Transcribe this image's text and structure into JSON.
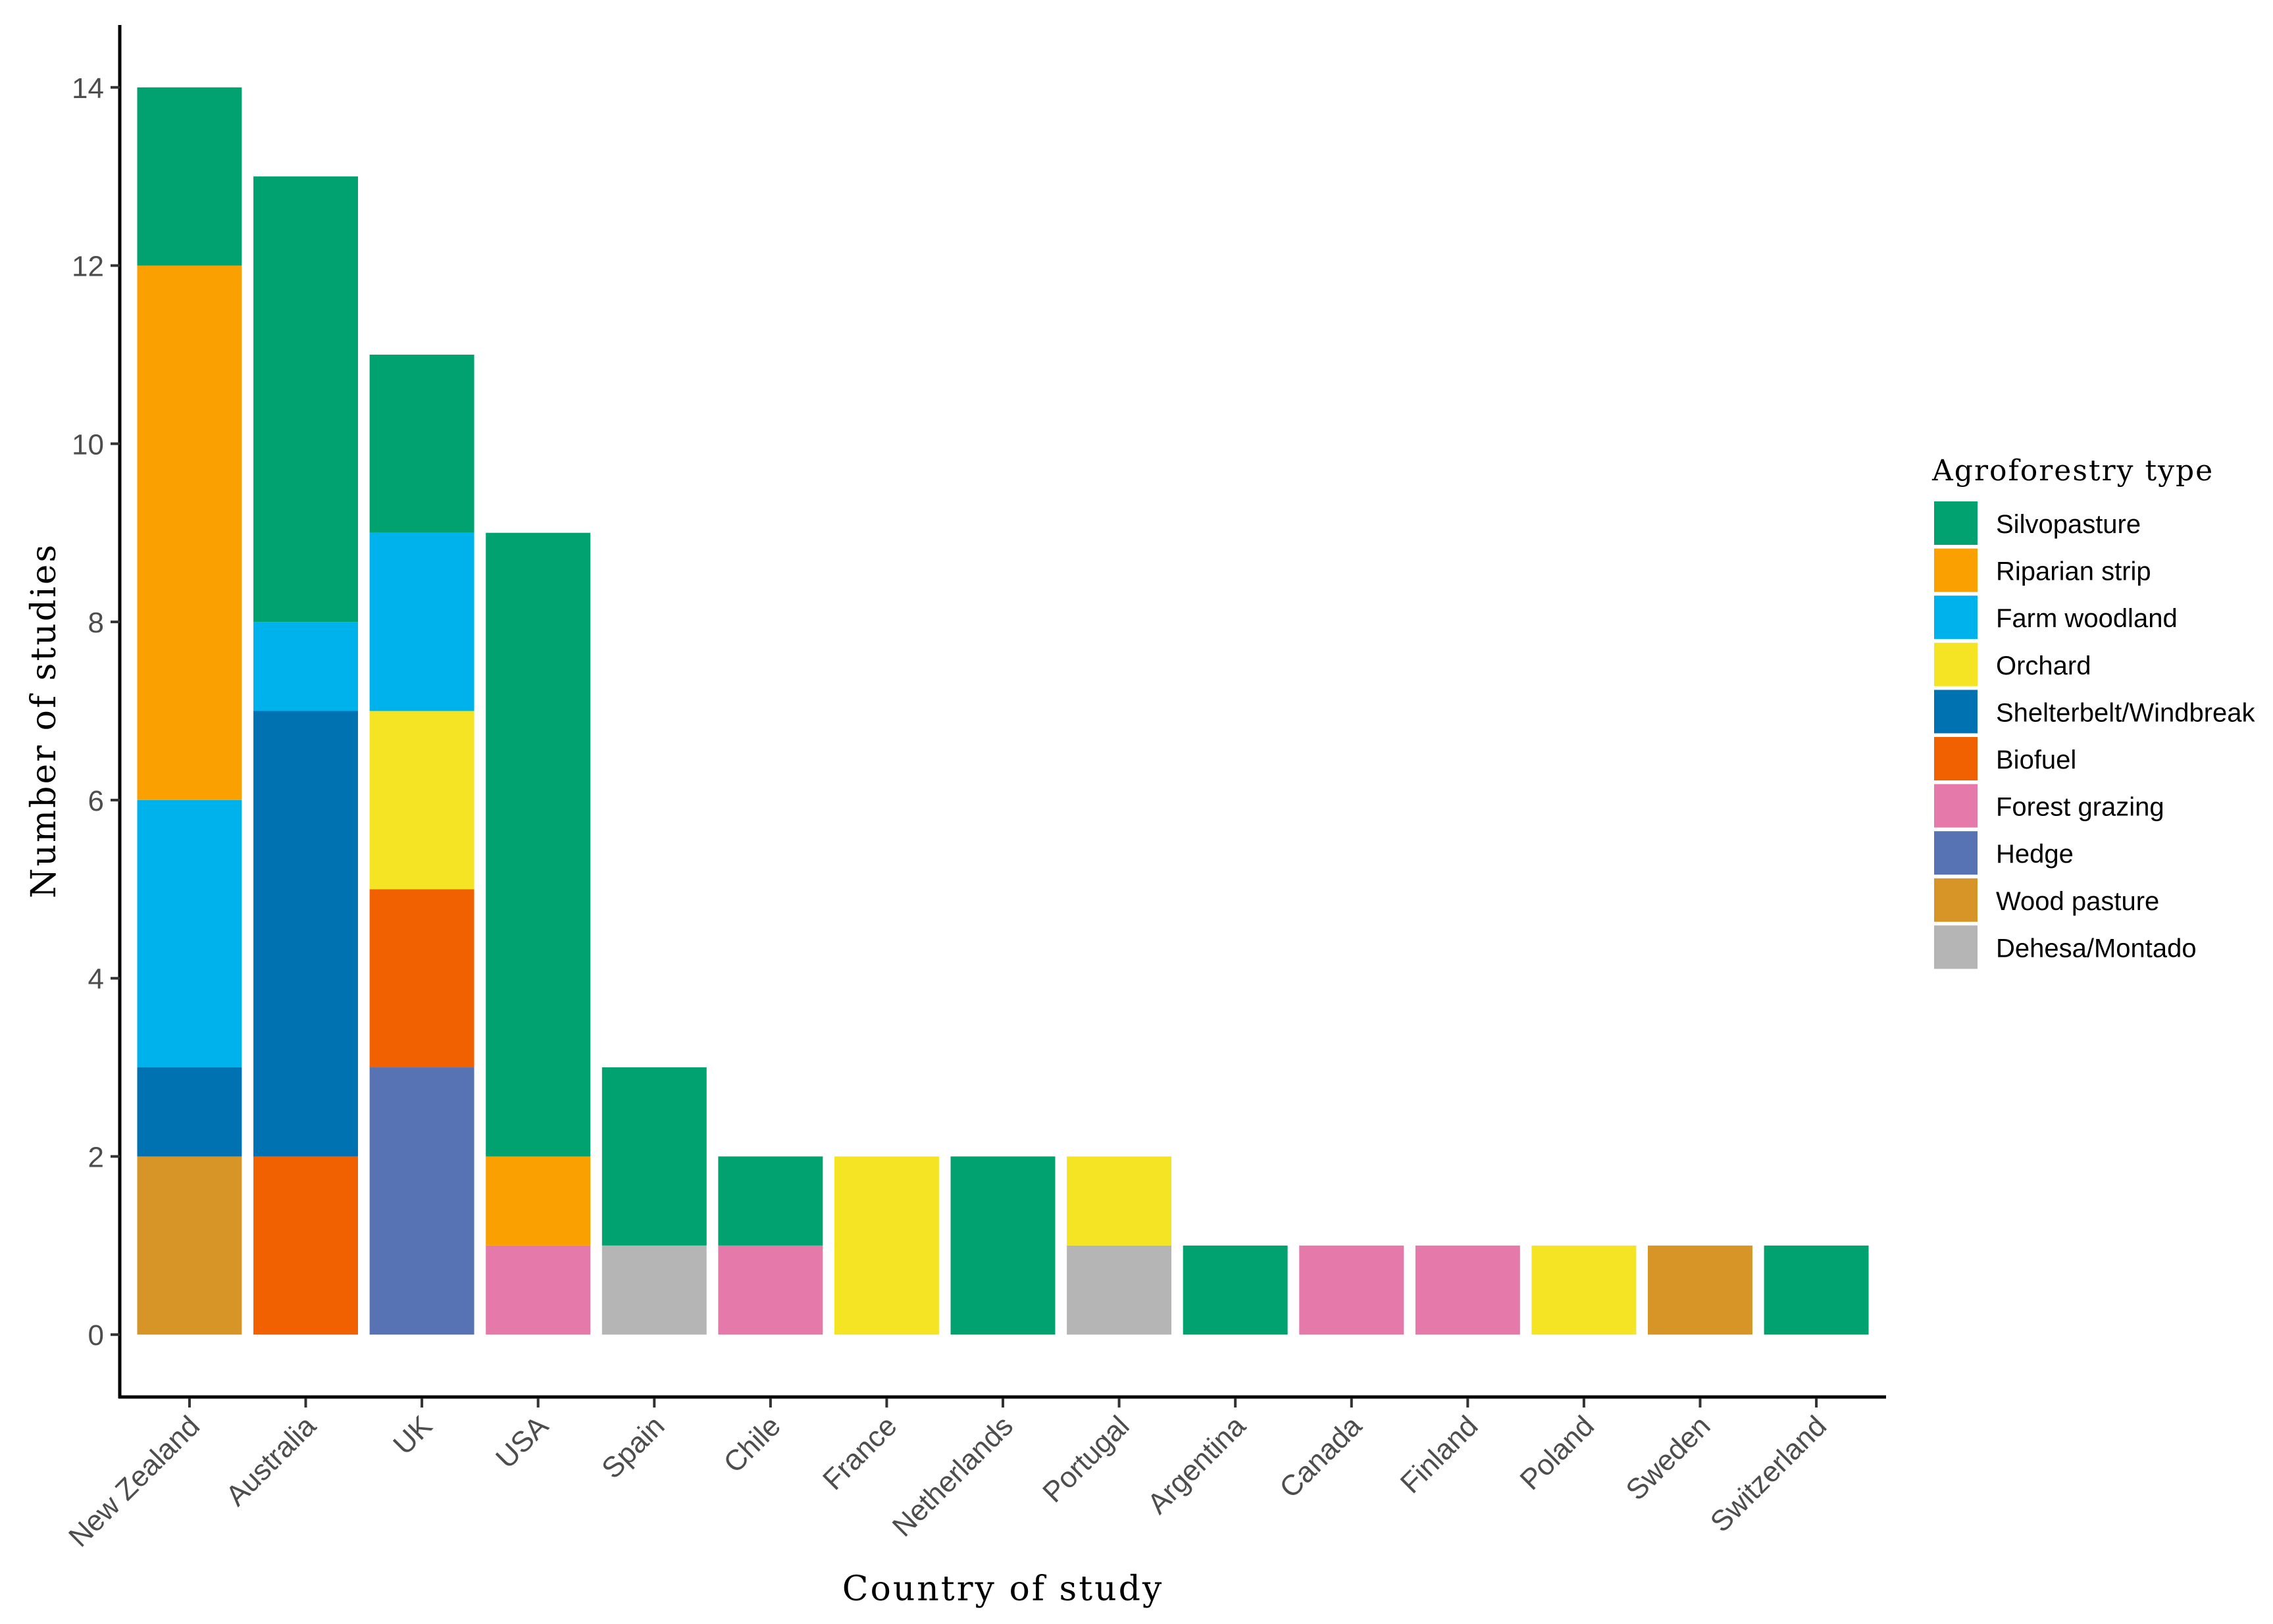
{
  "chart_data": {
    "type": "bar",
    "stacked": true,
    "xlabel": "Country of study",
    "ylabel": "Number of studies",
    "ylim": [
      -0.7,
      14.7
    ],
    "yticks": [
      0,
      2,
      4,
      6,
      8,
      10,
      12,
      14
    ],
    "grid": false,
    "legend_position": "right",
    "legend_title": "Agroforestry type",
    "categories": [
      "New Zealand",
      "Australia",
      "UK",
      "USA",
      "Spain",
      "Chile",
      "France",
      "Netherlands",
      "Portugal",
      "Argentina",
      "Canada",
      "Finland",
      "Poland",
      "Sweden",
      "Switzerland"
    ],
    "series": [
      {
        "name": "Wood pasture",
        "color": "#D69526",
        "values": [
          2,
          0,
          0,
          0,
          0,
          0,
          0,
          0,
          0,
          0,
          0,
          0,
          0,
          1,
          0
        ]
      },
      {
        "name": "Dehesa/Montado",
        "color": "#B5B5B5",
        "values": [
          0,
          0,
          0,
          0,
          1,
          0,
          0,
          0,
          1,
          0,
          0,
          0,
          0,
          0,
          0
        ]
      },
      {
        "name": "Forest grazing",
        "color": "#E579AA",
        "values": [
          0,
          0,
          0,
          1,
          0,
          1,
          0,
          0,
          0,
          0,
          1,
          1,
          0,
          0,
          0
        ]
      },
      {
        "name": "Hedge",
        "color": "#5773B4",
        "values": [
          0,
          0,
          3,
          0,
          0,
          0,
          0,
          0,
          0,
          0,
          0,
          0,
          0,
          0,
          0
        ]
      },
      {
        "name": "Biofuel",
        "color": "#F26101",
        "values": [
          0,
          2,
          2,
          0,
          0,
          0,
          0,
          0,
          0,
          0,
          0,
          0,
          0,
          0,
          0
        ]
      },
      {
        "name": "Shelterbelt/Windbreak",
        "color": "#0072B2",
        "values": [
          1,
          5,
          0,
          0,
          0,
          0,
          0,
          0,
          0,
          0,
          0,
          0,
          0,
          0,
          0
        ]
      },
      {
        "name": "Orchard",
        "color": "#F5E424",
        "values": [
          0,
          0,
          2,
          0,
          0,
          0,
          2,
          0,
          1,
          0,
          0,
          0,
          1,
          0,
          0
        ]
      },
      {
        "name": "Farm woodland",
        "color": "#00B2EC",
        "values": [
          3,
          1,
          2,
          0,
          0,
          0,
          0,
          0,
          0,
          0,
          0,
          0,
          0,
          0,
          0
        ]
      },
      {
        "name": "Riparian strip",
        "color": "#FAA001",
        "values": [
          6,
          0,
          0,
          1,
          0,
          0,
          0,
          0,
          0,
          0,
          0,
          0,
          0,
          0,
          0
        ]
      },
      {
        "name": "Silvopasture",
        "color": "#01A170",
        "values": [
          2,
          5,
          2,
          7,
          2,
          1,
          0,
          2,
          0,
          1,
          0,
          0,
          0,
          0,
          1
        ]
      }
    ],
    "legend_order": [
      "Silvopasture",
      "Riparian strip",
      "Farm woodland",
      "Orchard",
      "Shelterbelt/Windbreak",
      "Biofuel",
      "Forest grazing",
      "Hedge",
      "Wood pasture",
      "Dehesa/Montado"
    ]
  }
}
